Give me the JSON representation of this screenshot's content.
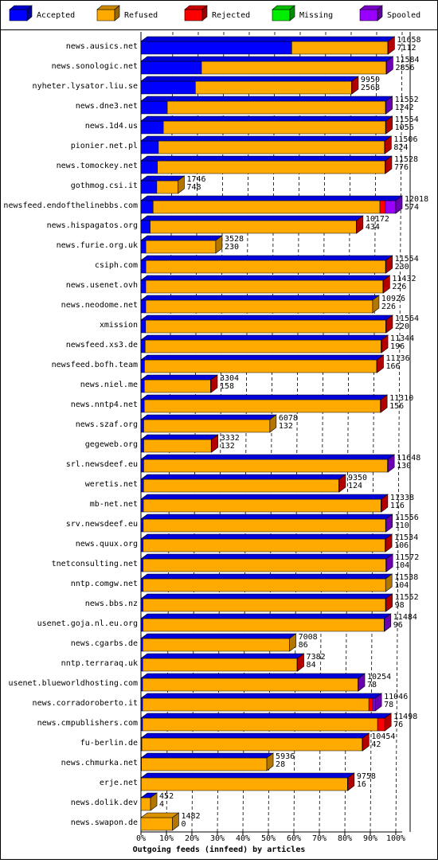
{
  "chart_data": {
    "type": "bar",
    "orientation": "horizontal",
    "stacked": true,
    "title": "Outgoing feeds (innfeed) by articles",
    "categories": [
      "news.ausics.net",
      "news.sonologic.net",
      "nyheter.lysator.liu.se",
      "news.dne3.net",
      "news.1d4.us",
      "pionier.net.pl",
      "news.tomockey.net",
      "gothmog.csi.it",
      "newsfeed.endofthelinebbs.com",
      "news.hispagatos.org",
      "news.furie.org.uk",
      "csiph.com",
      "news.usenet.ovh",
      "news.neodome.net",
      "xmission",
      "newsfeed.xs3.de",
      "newsfeed.bofh.team",
      "news.niel.me",
      "news.nntp4.net",
      "news.szaf.org",
      "gegeweb.org",
      "srl.newsdeef.eu",
      "weretis.net",
      "mb-net.net",
      "srv.newsdeef.eu",
      "news.quux.org",
      "tnetconsulting.net",
      "nntp.comgw.net",
      "news.bbs.nz",
      "usenet.goja.nl.eu.org",
      "news.cgarbs.de",
      "nntp.terraraq.uk",
      "usenet.blueworldhosting.com",
      "news.corradoroberto.it",
      "news.cmpublishers.com",
      "fu-berlin.de",
      "news.chmurka.net",
      "erje.net",
      "news.dolik.dev",
      "news.swapon.de"
    ],
    "totals": [
      11658,
      11584,
      9950,
      11552,
      11554,
      11506,
      11528,
      1746,
      12018,
      10172,
      3528,
      11554,
      11432,
      10926,
      11564,
      11344,
      11136,
      3304,
      11310,
      6078,
      3332,
      11648,
      9350,
      11338,
      11556,
      11534,
      11572,
      11538,
      11552,
      11484,
      7008,
      7382,
      10254,
      11046,
      11498,
      10454,
      5936,
      9758,
      452,
      1482
    ],
    "series": [
      {
        "name": "Accepted",
        "color": "#0000ff",
        "values": [
          7112,
          2856,
          2568,
          1242,
          1056,
          824,
          776,
          748,
          574,
          434,
          230,
          230,
          226,
          226,
          220,
          196,
          166,
          158,
          156,
          132,
          132,
          130,
          124,
          116,
          110,
          106,
          104,
          104,
          98,
          96,
          86,
          84,
          78,
          78,
          76,
          42,
          28,
          16,
          4,
          0
        ]
      },
      {
        "name": "Refused",
        "color": "#ffaa00",
        "values": [
          4526,
          8708,
          7362,
          10290,
          10478,
          10662,
          10732,
          998,
          10694,
          9718,
          3298,
          11304,
          11186,
          10700,
          11324,
          11128,
          10950,
          3126,
          11134,
          5946,
          3180,
          11498,
          9206,
          11202,
          11426,
          11408,
          11448,
          11434,
          11434,
          11368,
          6922,
          7278,
          10156,
          10668,
          11082,
          10392,
          5908,
          9722,
          448,
          1482
        ]
      },
      {
        "name": "Rejected",
        "color": "#ff0000",
        "values": [
          20,
          0,
          20,
          0,
          20,
          20,
          20,
          0,
          260,
          20,
          0,
          20,
          20,
          0,
          20,
          20,
          20,
          20,
          20,
          0,
          20,
          0,
          20,
          20,
          0,
          20,
          0,
          0,
          20,
          0,
          0,
          20,
          0,
          190,
          340,
          20,
          0,
          20,
          0,
          0
        ]
      },
      {
        "name": "Missing",
        "color": "#00ee00",
        "values": [
          0,
          0,
          0,
          0,
          0,
          0,
          0,
          0,
          0,
          0,
          0,
          0,
          0,
          0,
          0,
          0,
          0,
          0,
          0,
          0,
          0,
          0,
          0,
          0,
          0,
          0,
          0,
          0,
          0,
          0,
          0,
          0,
          0,
          0,
          0,
          0,
          0,
          0,
          0,
          0
        ]
      },
      {
        "name": "Spooled",
        "color": "#9900ff",
        "values": [
          0,
          20,
          0,
          20,
          0,
          0,
          0,
          0,
          490,
          0,
          0,
          0,
          0,
          0,
          0,
          0,
          0,
          0,
          0,
          0,
          0,
          20,
          0,
          0,
          20,
          0,
          20,
          0,
          0,
          20,
          0,
          0,
          20,
          110,
          0,
          0,
          0,
          0,
          0,
          0
        ]
      }
    ],
    "xlim": [
      0,
      12018
    ],
    "xticks": [
      {
        "value": 0,
        "label": "0%"
      },
      {
        "value": 1201.8,
        "label": "10%"
      },
      {
        "value": 2403.6,
        "label": "20%"
      },
      {
        "value": 3605.4,
        "label": "30%"
      },
      {
        "value": 4807.2,
        "label": "40%"
      },
      {
        "value": 6009,
        "label": "50%"
      },
      {
        "value": 7210.8,
        "label": "60%"
      },
      {
        "value": 8412.6,
        "label": "70%"
      },
      {
        "value": 9614.4,
        "label": "80%"
      },
      {
        "value": 10816.2,
        "label": "90%"
      },
      {
        "value": 12018,
        "label": "100%"
      }
    ],
    "grid": true
  }
}
